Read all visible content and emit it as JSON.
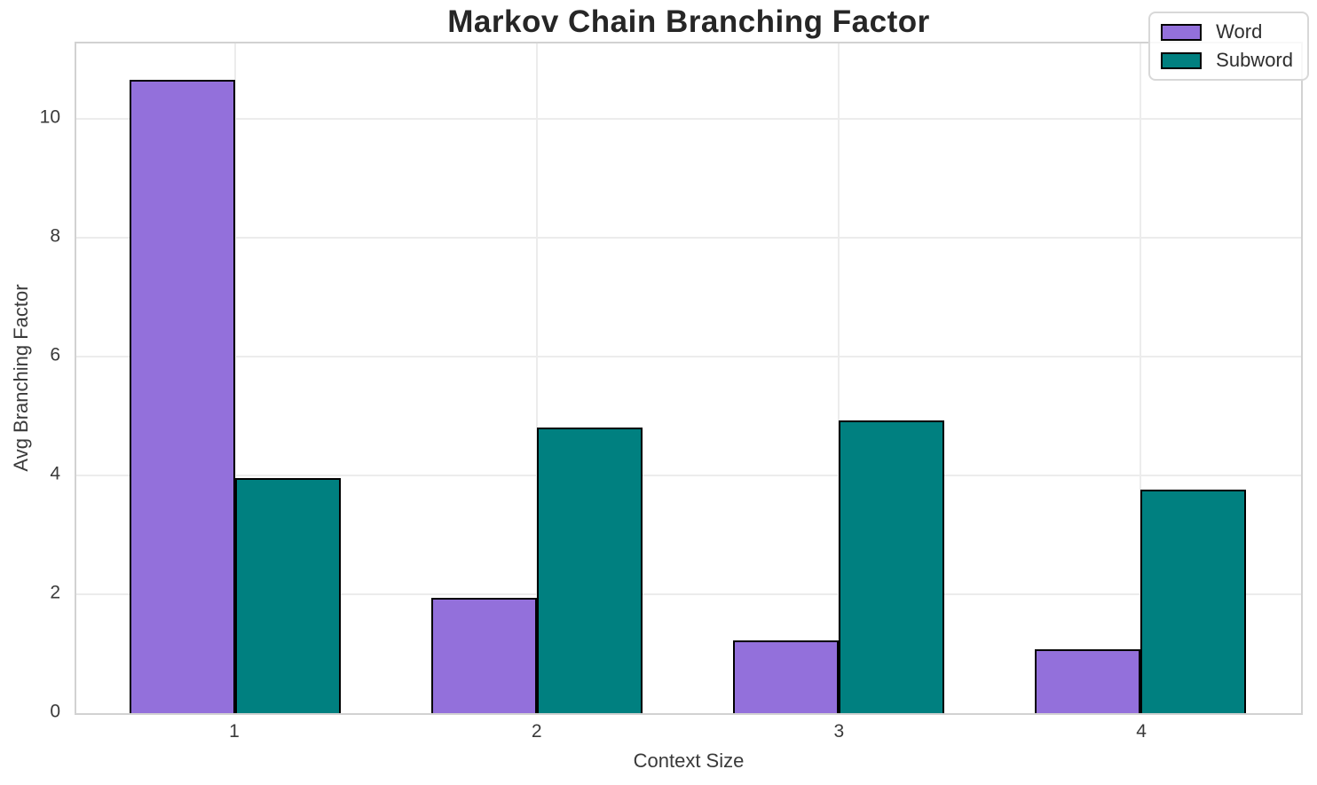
{
  "chart_data": {
    "type": "bar",
    "title": "Markov Chain Branching Factor",
    "xlabel": "Context Size",
    "ylabel": "Avg Branching Factor",
    "categories": [
      "1",
      "2",
      "3",
      "4"
    ],
    "series": [
      {
        "name": "Word",
        "color": "#9370db",
        "values": [
          10.66,
          1.94,
          1.23,
          1.08
        ]
      },
      {
        "name": "Subword",
        "color": "#008080",
        "values": [
          3.96,
          4.81,
          4.92,
          3.76
        ]
      }
    ],
    "ylim": [
      0,
      11.27
    ],
    "yticks": [
      0,
      2,
      4,
      6,
      8,
      10
    ],
    "grid": true,
    "legend_position": "upper right",
    "bar_edge_color": "#000000",
    "title_color": "#262626",
    "text_color": "#3a3a3a"
  }
}
